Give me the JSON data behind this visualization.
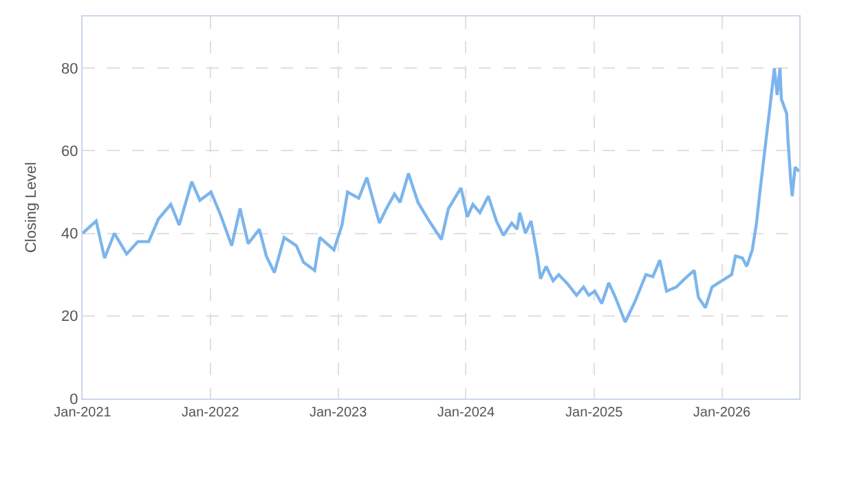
{
  "chart_data": {
    "type": "line",
    "ylabel": "Closing Level",
    "x": [
      "2021-01-01",
      "2021-02-09",
      "2021-03-05",
      "2021-04-02",
      "2021-05-07",
      "2021-06-08",
      "2021-07-09",
      "2021-08-06",
      "2021-09-10",
      "2021-10-04",
      "2021-11-09",
      "2021-12-02",
      "2022-01-03",
      "2022-01-30",
      "2022-03-03",
      "2022-03-27",
      "2022-04-19",
      "2022-05-21",
      "2022-06-10",
      "2022-07-03",
      "2022-07-31",
      "2022-09-04",
      "2022-09-24",
      "2022-10-26",
      "2022-11-10",
      "2022-12-20",
      "2023-01-12",
      "2023-01-28",
      "2023-03-01",
      "2023-03-24",
      "2023-04-29",
      "2023-05-19",
      "2023-06-11",
      "2023-06-27",
      "2023-07-21",
      "2023-08-17",
      "2023-09-18",
      "2023-10-23",
      "2023-11-12",
      "2023-12-18",
      "2024-01-05",
      "2024-01-21",
      "2024-02-10",
      "2024-03-05",
      "2024-03-28",
      "2024-04-17",
      "2024-05-11",
      "2024-05-26",
      "2024-06-03",
      "2024-06-19",
      "2024-07-05",
      "2024-07-24",
      "2024-08-01",
      "2024-08-17",
      "2024-09-06",
      "2024-09-22",
      "2024-10-15",
      "2024-11-12",
      "2024-12-02",
      "2024-12-17",
      "2025-01-03",
      "2025-01-23",
      "2025-02-12",
      "2025-03-03",
      "2025-03-31",
      "2025-04-28",
      "2025-05-29",
      "2025-06-18",
      "2025-07-08",
      "2025-07-27",
      "2025-08-24",
      "2025-09-17",
      "2025-10-14",
      "2025-10-26",
      "2025-11-15",
      "2025-12-04",
      "2026-01-01",
      "2026-01-29",
      "2026-02-09",
      "2026-03-01",
      "2026-03-13",
      "2026-03-29",
      "2026-04-10",
      "2026-04-21",
      "2026-05-07",
      "2026-05-19",
      "2026-05-31",
      "2026-06-08",
      "2026-06-16",
      "2026-06-20",
      "2026-07-05",
      "2026-07-09",
      "2026-07-17",
      "2026-07-21",
      "2026-07-29",
      "2026-08-10"
    ],
    "series": [
      {
        "color": "#7cb5ec",
        "values": [
          40,
          43,
          34,
          40,
          35,
          38,
          38,
          43.5,
          47,
          42,
          52.5,
          48,
          50,
          44.5,
          37,
          46,
          37.5,
          41,
          34.5,
          30.5,
          39,
          37,
          33,
          31,
          39,
          36,
          42,
          50,
          48.5,
          53.5,
          42.5,
          46,
          49.5,
          47.5,
          54.5,
          47.5,
          43,
          38.5,
          46,
          51,
          44,
          47,
          45,
          49,
          43,
          39.5,
          42.5,
          41,
          45,
          40,
          43,
          34,
          29,
          32,
          28.5,
          30,
          28,
          25,
          27,
          25,
          26,
          23,
          28,
          24.5,
          18.5,
          23.5,
          30,
          29.5,
          33.5,
          26,
          27,
          29,
          31,
          24.5,
          22,
          27,
          28.5,
          30,
          34.5,
          34,
          32,
          36,
          42.5,
          51,
          62.5,
          71,
          80,
          73.5,
          80,
          72.5,
          69,
          62.5,
          52.5,
          49,
          56,
          55
        ]
      }
    ],
    "xlim": [
      "2021-01-01",
      "2026-08-10"
    ],
    "xticks": [
      {
        "value": "2021-01-01",
        "label": "Jan-2021"
      },
      {
        "value": "2022-01-01",
        "label": "Jan-2022"
      },
      {
        "value": "2023-01-01",
        "label": "Jan-2023"
      },
      {
        "value": "2024-01-01",
        "label": "Jan-2024"
      },
      {
        "value": "2025-01-01",
        "label": "Jan-2025"
      },
      {
        "value": "2026-01-01",
        "label": "Jan-2026"
      }
    ],
    "ylim": [
      0,
      92.5
    ],
    "yticks": [
      0,
      20,
      40,
      60,
      80
    ],
    "grid": true,
    "marker": "none",
    "line_style": "solid"
  }
}
